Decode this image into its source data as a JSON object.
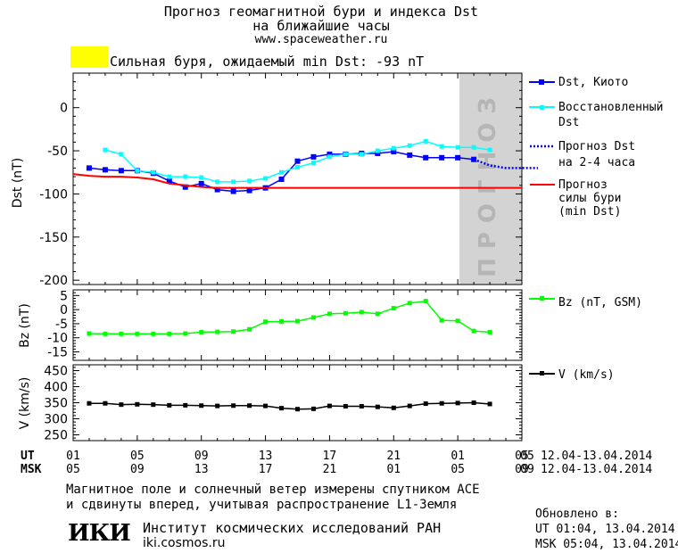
{
  "header": {
    "title_line1": "Прогноз геомагнитной бури и индекса Dst",
    "title_line2": "на ближайшие часы",
    "website": "www.spaceweather.ru"
  },
  "storm": {
    "swatch_color": "#ffff00",
    "text": "Сильная буря, ожидаемый min Dst: -93 nT"
  },
  "chart_data": [
    {
      "type": "line",
      "ylabel": "Dst (nT)",
      "ylim": [
        -205,
        40
      ],
      "yticks": [
        "0",
        "-50",
        "-100",
        "-150",
        "-200"
      ],
      "forecast_band_label": "ПРОГНОЗ",
      "forecast_band_color": "#d3d3d3",
      "storm_threshold": -93,
      "series": [
        {
          "name": "Dst, Киото",
          "color": "#0000ff",
          "x": [
            1,
            2,
            3,
            4,
            5,
            6,
            7,
            8,
            9,
            10,
            11,
            12,
            13,
            14,
            15,
            16,
            17,
            18,
            19,
            20,
            21,
            22,
            23,
            24,
            25
          ],
          "y": [
            -70,
            -72,
            -73,
            -73,
            -76,
            -85,
            -92,
            -88,
            -95,
            -97,
            -96,
            -93,
            -83,
            -62,
            -57,
            -54,
            -54,
            -53,
            -53,
            -51,
            -55,
            -58,
            -58,
            -58,
            -60
          ]
        },
        {
          "name": "Восстановленный Dst",
          "color": "#00ffff",
          "x": [
            2,
            3,
            4,
            5,
            6,
            7,
            8,
            9,
            10,
            11,
            12,
            13,
            14,
            15,
            16,
            17,
            18,
            19,
            20,
            21,
            22,
            23,
            24,
            25,
            26
          ],
          "y": [
            -49,
            -54,
            -73,
            -75,
            -80,
            -80,
            -81,
            -86,
            -86,
            -85,
            -82,
            -75,
            -69,
            -64,
            -57,
            -54,
            -54,
            -50,
            -47,
            -44,
            -39,
            -45,
            -46,
            -46,
            -49
          ]
        },
        {
          "name": "Прогноз Dst на 2-4 часа",
          "color": "#0000ff",
          "style": "dotted",
          "x": [
            25,
            26,
            27,
            28,
            29
          ],
          "y": [
            -60,
            -67,
            -70,
            -70,
            -70
          ]
        },
        {
          "name": "Прогноз силы бури (min Dst)",
          "color": "#ff0000",
          "x": [
            0,
            1,
            2,
            3,
            4,
            5,
            6,
            7,
            8,
            9,
            10,
            11,
            12
          ],
          "y": [
            -77,
            -79,
            -80,
            -80,
            -81,
            -83,
            -88,
            -90,
            -92,
            -93,
            -93,
            -93,
            -93
          ]
        }
      ]
    },
    {
      "type": "line",
      "ylabel": "Bz (nT)",
      "ylim": [
        -18,
        7
      ],
      "yticks": [
        "5",
        "0",
        "-5",
        "-10",
        "-15"
      ],
      "series": [
        {
          "name": "Bz (nT, GSM)",
          "color": "#00ff00",
          "x": [
            1,
            2,
            3,
            4,
            5,
            6,
            7,
            8,
            9,
            10,
            11,
            12,
            13,
            14,
            15,
            16,
            17,
            18,
            19,
            20,
            21,
            22,
            23,
            24,
            25,
            26
          ],
          "y": [
            -8.5,
            -8.6,
            -8.6,
            -8.6,
            -8.6,
            -8.6,
            -8.5,
            -8.0,
            -7.9,
            -7.8,
            -7.0,
            -4.3,
            -4.2,
            -4.1,
            -2.8,
            -1.5,
            -1.3,
            -0.9,
            -1.5,
            0.5,
            2.3,
            3.0,
            -3.8,
            -4.0,
            -7.6,
            -8.0
          ]
        }
      ]
    },
    {
      "type": "line",
      "ylabel": "V (km/s)",
      "ylim": [
        232,
        468
      ],
      "yticks": [
        "450",
        "400",
        "350",
        "300",
        "250"
      ],
      "series": [
        {
          "name": "V (km/s)",
          "color": "#000000",
          "x": [
            1,
            2,
            3,
            4,
            5,
            6,
            7,
            8,
            9,
            10,
            11,
            12,
            13,
            14,
            15,
            16,
            17,
            18,
            19,
            20,
            21,
            22,
            23,
            24,
            25,
            26
          ],
          "y": [
            348,
            348,
            344,
            345,
            344,
            342,
            342,
            341,
            340,
            341,
            341,
            340,
            333,
            330,
            331,
            340,
            339,
            339,
            337,
            334,
            340,
            347,
            348,
            349,
            350,
            346
          ]
        }
      ]
    }
  ],
  "time_axis": {
    "ut_label": "UT",
    "msk_label": "MSK",
    "ut_ticks": [
      "01",
      "05",
      "09",
      "13",
      "17",
      "21",
      "01",
      "05"
    ],
    "ut_end": "05",
    "msk_ticks": [
      "05",
      "09",
      "13",
      "17",
      "21",
      "01",
      "05",
      "09"
    ],
    "msk_end": "09",
    "date_range_ut": "12.04-13.04.2014",
    "date_range_msk": "12.04-13.04.2014"
  },
  "footer": {
    "note_line1": "Магнитное поле и солнечный ветер измерены спутником ACE",
    "note_line2": "и сдвинуты вперед, учитывая распространение L1-Земля",
    "logo_text": "ИКИ",
    "institute": "Институт космических исследований РАН",
    "website": "iki.cosmos.ru",
    "updated_title": "Обновлено в:",
    "updated_ut": "UT  01:04, 13.04.2014",
    "updated_msk": "MSK 05:04, 13.04.2014"
  }
}
